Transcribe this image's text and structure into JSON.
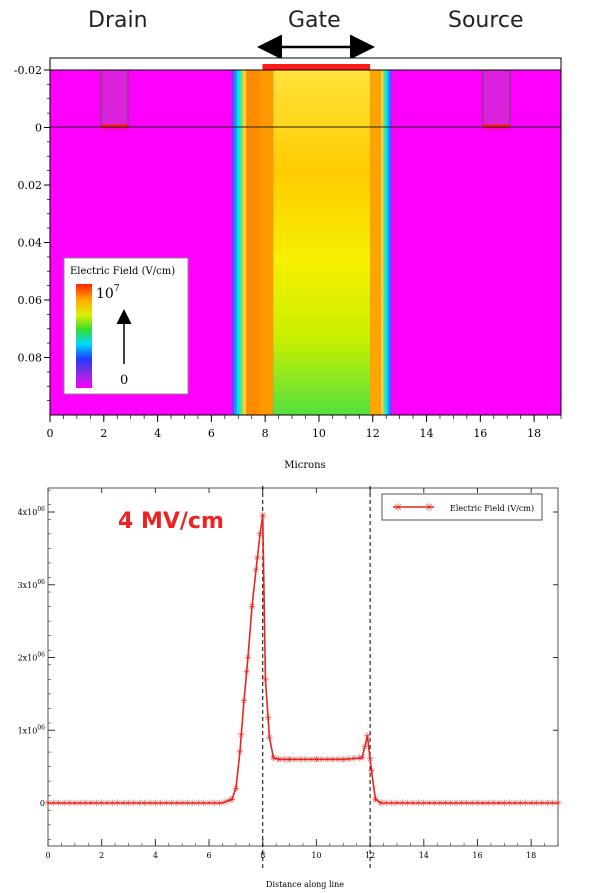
{
  "header": {
    "drain_label": "Drain",
    "gate_label": "Gate",
    "source_label": "Source"
  },
  "chart_data": [
    {
      "type": "heatmap",
      "title": "",
      "xlabel": "Microns",
      "ylabel": "",
      "xlim": [
        0,
        19
      ],
      "ylim": [
        -0.02,
        0.1
      ],
      "x_ticks": [
        "0",
        "2",
        "4",
        "6",
        "8",
        "10",
        "12",
        "14",
        "16",
        "18"
      ],
      "y_ticks": [
        "-0.02",
        "0",
        "0.02",
        "0.04",
        "0.06",
        "0.08"
      ],
      "legend": {
        "title": "Electric Field (V/cm)",
        "max_label": "10",
        "max_exp": "7",
        "min_label": "0",
        "placement": "bottom-left"
      },
      "regions": [
        {
          "name": "background",
          "x": [
            0,
            19
          ],
          "color": "#ff00ff"
        },
        {
          "name": "drain-contact",
          "x": [
            1.9,
            2.9
          ],
          "color": "#dd22dd"
        },
        {
          "name": "channel-edge-left",
          "x": [
            6.8,
            7.3
          ],
          "color": "#00bfff"
        },
        {
          "name": "channel-high-left",
          "x": [
            7.3,
            8.3
          ],
          "color": "#ff9900"
        },
        {
          "name": "channel-center",
          "x": [
            8.3,
            11.9
          ],
          "color": "#ffee00"
        },
        {
          "name": "channel-high-right",
          "x": [
            11.9,
            12.3
          ],
          "color": "#ffa500"
        },
        {
          "name": "channel-edge-right",
          "x": [
            12.3,
            12.6
          ],
          "color": "#00bfff"
        },
        {
          "name": "source-contact",
          "x": [
            16.1,
            17.1
          ],
          "color": "#dd22dd"
        },
        {
          "name": "gate-electrode",
          "x": [
            7.9,
            11.9
          ],
          "color": "#ff1a1a"
        }
      ]
    },
    {
      "type": "line",
      "title": "",
      "xlabel": "Distance along line",
      "ylabel": "",
      "xlim": [
        0,
        19
      ],
      "ylim": [
        -500000,
        4300000
      ],
      "x_ticks": [
        "0",
        "2",
        "4",
        "6",
        "8",
        "10",
        "12",
        "14",
        "16",
        "18"
      ],
      "y_ticks": [
        {
          "value": 0,
          "label": "0"
        },
        {
          "value": 1000000,
          "label": "1x10",
          "exp": "06"
        },
        {
          "value": 2000000,
          "label": "2x10",
          "exp": "06"
        },
        {
          "value": 3000000,
          "label": "3x10",
          "exp": "06"
        },
        {
          "value": 4000000,
          "label": "4x10",
          "exp": "06"
        }
      ],
      "annotation": "4 MV/cm",
      "vlines": [
        8,
        12
      ],
      "series": [
        {
          "name": "Electric Field (V/cm)",
          "color": "#e8241f",
          "x": [
            0,
            6.5,
            6.85,
            7.0,
            7.15,
            7.3,
            7.45,
            7.6,
            7.75,
            7.9,
            8.0,
            8.1,
            8.25,
            8.4,
            8.6,
            9.0,
            10.0,
            11.0,
            11.7,
            11.9,
            12.05,
            12.2,
            12.4,
            13.0,
            19
          ],
          "y": [
            0,
            0,
            50000,
            200000,
            700000,
            1400000,
            2000000,
            2700000,
            3200000,
            3700000,
            3950000,
            1700000,
            900000,
            620000,
            600000,
            600000,
            600000,
            600000,
            620000,
            920000,
            450000,
            50000,
            0,
            0,
            0
          ]
        }
      ]
    }
  ]
}
